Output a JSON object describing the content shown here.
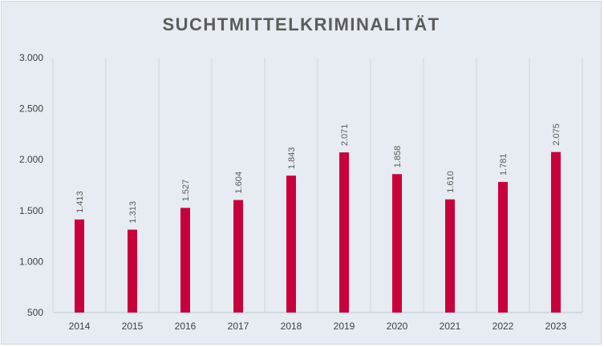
{
  "chart_data": {
    "type": "bar",
    "title": "SUCHTMITTELKRIMINALITÄT",
    "xlabel": "",
    "ylabel": "",
    "categories": [
      "2014",
      "2015",
      "2016",
      "2017",
      "2018",
      "2019",
      "2020",
      "2021",
      "2022",
      "2023"
    ],
    "values": [
      1413,
      1313,
      1527,
      1604,
      1843,
      2071,
      1858,
      1610,
      1781,
      2075
    ],
    "value_labels": [
      "1.413",
      "1.313",
      "1.527",
      "1.604",
      "1.843",
      "2.071",
      "1.858",
      "1.610",
      "1.781",
      "2.075"
    ],
    "ylim": [
      500,
      3000
    ],
    "yticks": [
      500,
      1000,
      1500,
      2000,
      2500,
      3000
    ],
    "ytick_labels": [
      "500",
      "1.000",
      "1.500",
      "2.000",
      "2.500",
      "3.000"
    ],
    "grid": "vertical",
    "legend": "none",
    "colors": {
      "bar": "#c8003c",
      "background": "#e6ecf1",
      "gridline": "#d0d7dd",
      "axis": "#bfc7cd"
    }
  }
}
